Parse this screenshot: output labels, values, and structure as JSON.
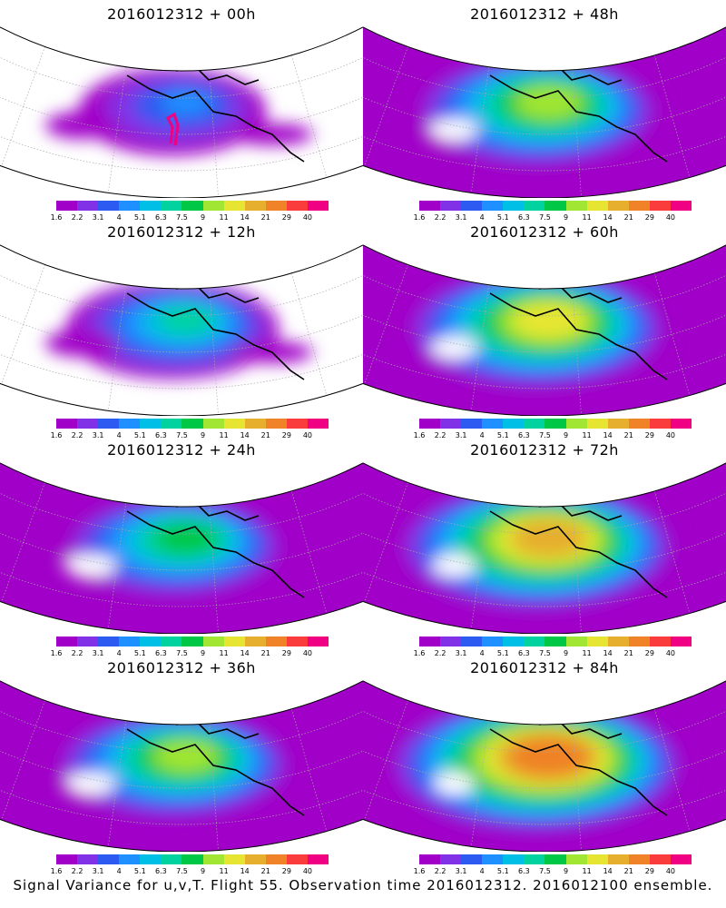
{
  "colorbar": {
    "labels": [
      "1.6",
      "2.2",
      "3.1",
      "4",
      "5.1",
      "6.3",
      "7.5",
      "9",
      "11",
      "14",
      "21",
      "29",
      "40"
    ],
    "colors": [
      "#a000c8",
      "#8232e6",
      "#2d5af0",
      "#1e90ff",
      "#00bfe6",
      "#00d2a0",
      "#00c846",
      "#a0e632",
      "#e6e632",
      "#e6af2d",
      "#f08228",
      "#fa3c3c",
      "#f00082"
    ]
  },
  "panels": [
    {
      "title": "2016012312 + 00h",
      "lead_hours": 0,
      "intensity": 0.15
    },
    {
      "title": "2016012312 + 48h",
      "lead_hours": 48,
      "intensity": 0.55
    },
    {
      "title": "2016012312 + 12h",
      "lead_hours": 12,
      "intensity": 0.3
    },
    {
      "title": "2016012312 + 60h",
      "lead_hours": 60,
      "intensity": 0.65
    },
    {
      "title": "2016012312 + 24h",
      "lead_hours": 24,
      "intensity": 0.42
    },
    {
      "title": "2016012312 + 72h",
      "lead_hours": 72,
      "intensity": 0.75
    },
    {
      "title": "2016012312 + 36h",
      "lead_hours": 36,
      "intensity": 0.5
    },
    {
      "title": "2016012312 + 84h",
      "lead_hours": 84,
      "intensity": 0.85
    }
  ],
  "footer": "Signal Variance for u,v,T. Flight 55. Observation time 2016012312. 2016012100 ensemble."
}
